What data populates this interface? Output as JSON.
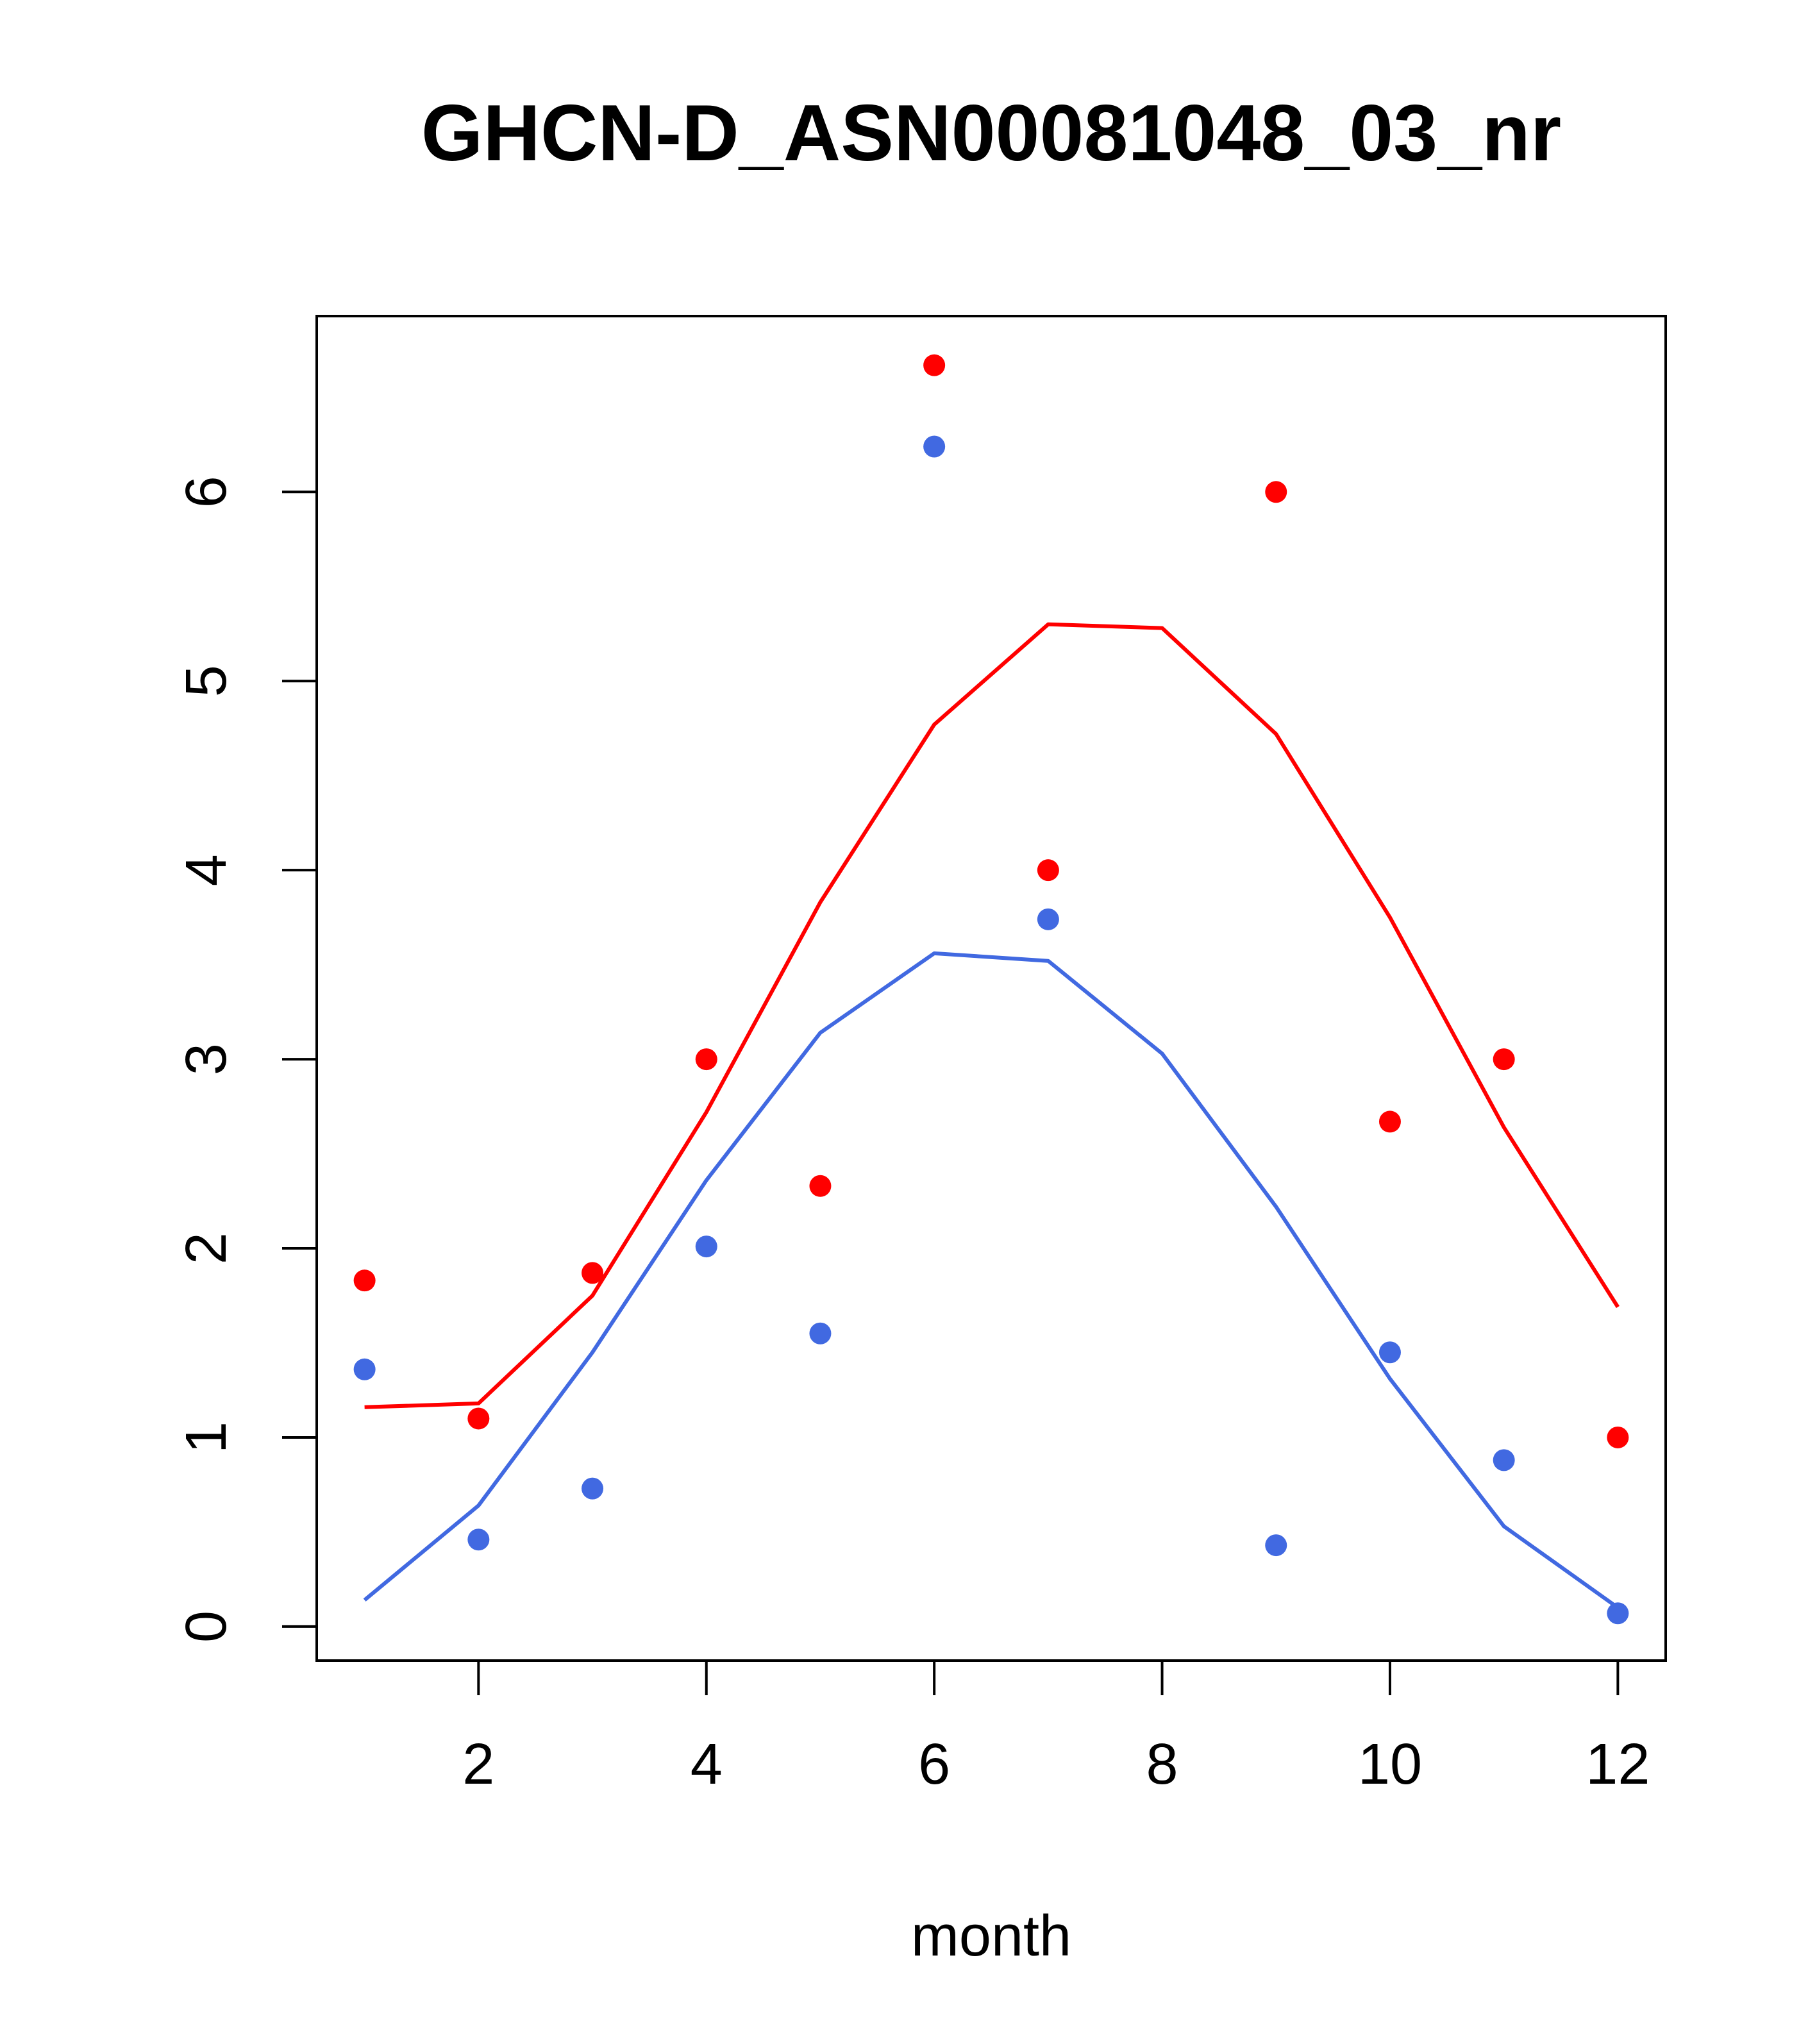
{
  "chart_data": {
    "type": "line",
    "title": "GHCN-D_ASN00081048_03_nr",
    "xlabel": "month",
    "ylabel": "",
    "xlim": [
      0.58,
      12.42
    ],
    "ylim": [
      -0.18,
      6.93
    ],
    "x_ticks": [
      2,
      4,
      6,
      8,
      10,
      12
    ],
    "y_ticks": [
      0,
      1,
      2,
      3,
      4,
      5,
      6
    ],
    "grid": false,
    "legend": "none",
    "series": [
      {
        "color": "#ff0000",
        "points_x": [
          1,
          2,
          3,
          4,
          5,
          6,
          7,
          9,
          10,
          11,
          12
        ],
        "points_y": [
          1.83,
          1.1,
          1.87,
          3.0,
          2.33,
          6.67,
          4.0,
          6.0,
          2.67,
          3.0,
          1.0
        ],
        "line_x": [
          1,
          2,
          3,
          4,
          5,
          6,
          7,
          8,
          9,
          10,
          11,
          12
        ],
        "line_y": [
          1.16,
          1.18,
          1.75,
          2.72,
          3.83,
          4.77,
          5.3,
          5.28,
          4.72,
          3.75,
          2.64,
          1.69
        ]
      },
      {
        "color": "#4169e1",
        "points_x": [
          1,
          2,
          3,
          4,
          5,
          6,
          7,
          9,
          10,
          11,
          12
        ],
        "points_y": [
          1.36,
          0.46,
          0.73,
          2.01,
          1.55,
          6.24,
          3.74,
          0.43,
          1.45,
          0.88,
          0.07
        ],
        "line_x": [
          1,
          2,
          3,
          4,
          5,
          6,
          7,
          8,
          9,
          10,
          11,
          12
        ],
        "line_y": [
          0.14,
          0.64,
          1.45,
          2.36,
          3.14,
          3.56,
          3.52,
          3.03,
          2.22,
          1.31,
          0.53,
          0.1
        ]
      }
    ]
  }
}
